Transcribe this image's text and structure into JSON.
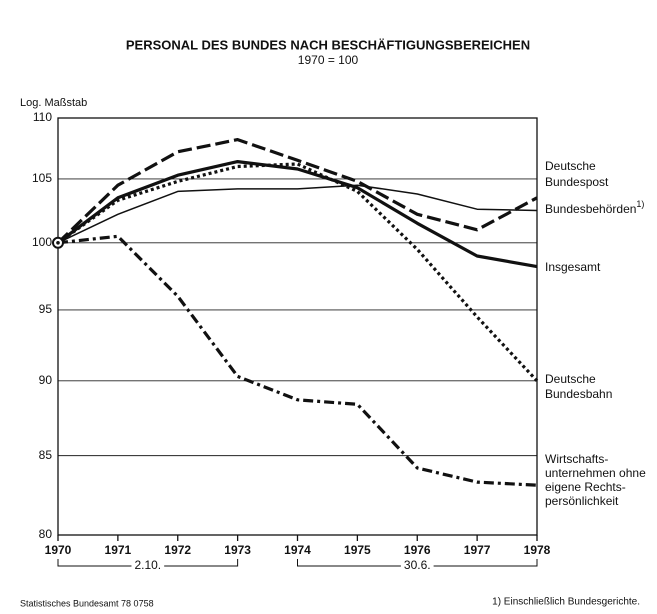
{
  "chart_data": {
    "type": "line",
    "title": "PERSONAL DES BUNDES NACH BESCHÄFTIGUNGSBEREICHEN",
    "subtitle": "1970 = 100",
    "y_axis_label": "Log. Maßstab",
    "log_scale": true,
    "grid": true,
    "x": [
      1970,
      1971,
      1972,
      1973,
      1974,
      1975,
      1976,
      1977,
      1978
    ],
    "xlim": [
      1970,
      1978
    ],
    "xticks": [
      1970,
      1971,
      1972,
      1973,
      1974,
      1975,
      1976,
      1977,
      1978
    ],
    "ylim": [
      80,
      110
    ],
    "yticks": [
      80,
      85,
      90,
      95,
      100,
      105,
      110
    ],
    "series": [
      {
        "name_lines": [
          "Deutsche",
          "Bundespost"
        ],
        "color": "#111111",
        "style": "dashed",
        "width": "thick",
        "values": [
          100,
          104.5,
          107.2,
          108.2,
          106.5,
          104.8,
          102.2,
          101.0,
          103.5
        ]
      },
      {
        "name_lines": [
          "Bundesbehörden"
        ],
        "footnote_marker": "1)",
        "color": "#111111",
        "style": "solid",
        "width": "thin",
        "values": [
          100,
          102.2,
          104.0,
          104.2,
          104.2,
          104.5,
          103.8,
          102.6,
          102.5
        ]
      },
      {
        "name_lines": [
          "Insgesamt"
        ],
        "color": "#111111",
        "style": "solid",
        "width": "thick",
        "values": [
          100,
          103.5,
          105.3,
          106.4,
          105.8,
          104.3,
          101.5,
          99.0,
          98.2
        ]
      },
      {
        "name_lines": [
          "Deutsche",
          "Bundesbahn"
        ],
        "color": "#111111",
        "style": "dotted",
        "width": "thick",
        "values": [
          100,
          103.3,
          104.8,
          106.0,
          106.2,
          104.0,
          99.5,
          94.5,
          90.0
        ]
      },
      {
        "name_lines": [
          "Wirtschafts-",
          "unternehmen ohne",
          "eigene Rechts-",
          "persönlichkeit"
        ],
        "color": "#111111",
        "style": "dashdot",
        "width": "thick",
        "values": [
          100,
          100.5,
          96.0,
          90.3,
          88.7,
          88.4,
          84.2,
          83.3,
          83.1
        ]
      }
    ],
    "periods": [
      {
        "label": "2.10.",
        "from": 1970,
        "to": 1973
      },
      {
        "label": "30.6.",
        "from": 1974,
        "to": 1978
      }
    ],
    "source": "Statistisches Bundesamt 78 0758",
    "footnote": "1) Einschließlich Bundesgerichte."
  }
}
